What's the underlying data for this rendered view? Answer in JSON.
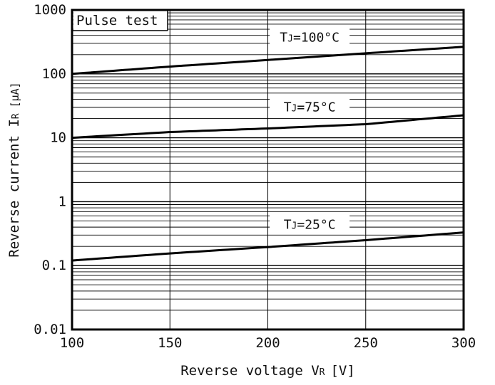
{
  "chart_data": {
    "type": "line",
    "x_scale": "linear",
    "y_scale": "log",
    "xlim": [
      100,
      300
    ],
    "ylim": [
      0.01,
      1000
    ],
    "x_ticks": [
      100,
      150,
      200,
      250,
      300
    ],
    "x_tick_labels": [
      "100",
      "150",
      "200",
      "250",
      "300"
    ],
    "y_ticks": [
      0.01,
      0.1,
      1,
      10,
      100,
      1000
    ],
    "y_tick_labels": [
      "0.01",
      "0.1",
      "1",
      "10",
      "100",
      "1000"
    ],
    "xlabel": {
      "main": "Reverse voltage V",
      "sub": "R",
      "unit": "[V]"
    },
    "ylabel": {
      "main": "Reverse current I",
      "sub": "R",
      "unit": "[μA]"
    },
    "grid": true,
    "legend_box": "Pulse test",
    "series": [
      {
        "label_main": "T",
        "label_sub": "J",
        "label_rest": "=100°C",
        "x": [
          100,
          150,
          200,
          250,
          300
        ],
        "y": [
          100,
          130,
          165,
          210,
          265
        ]
      },
      {
        "label_main": "T",
        "label_sub": "J",
        "label_rest": "=75°C",
        "x": [
          100,
          150,
          200,
          250,
          300
        ],
        "y": [
          10,
          12.3,
          14,
          16.3,
          22.5
        ]
      },
      {
        "label_main": "T",
        "label_sub": "J",
        "label_rest": "=25°C",
        "x": [
          100,
          150,
          200,
          250,
          300
        ],
        "y": [
          0.12,
          0.155,
          0.195,
          0.25,
          0.33
        ]
      }
    ]
  }
}
